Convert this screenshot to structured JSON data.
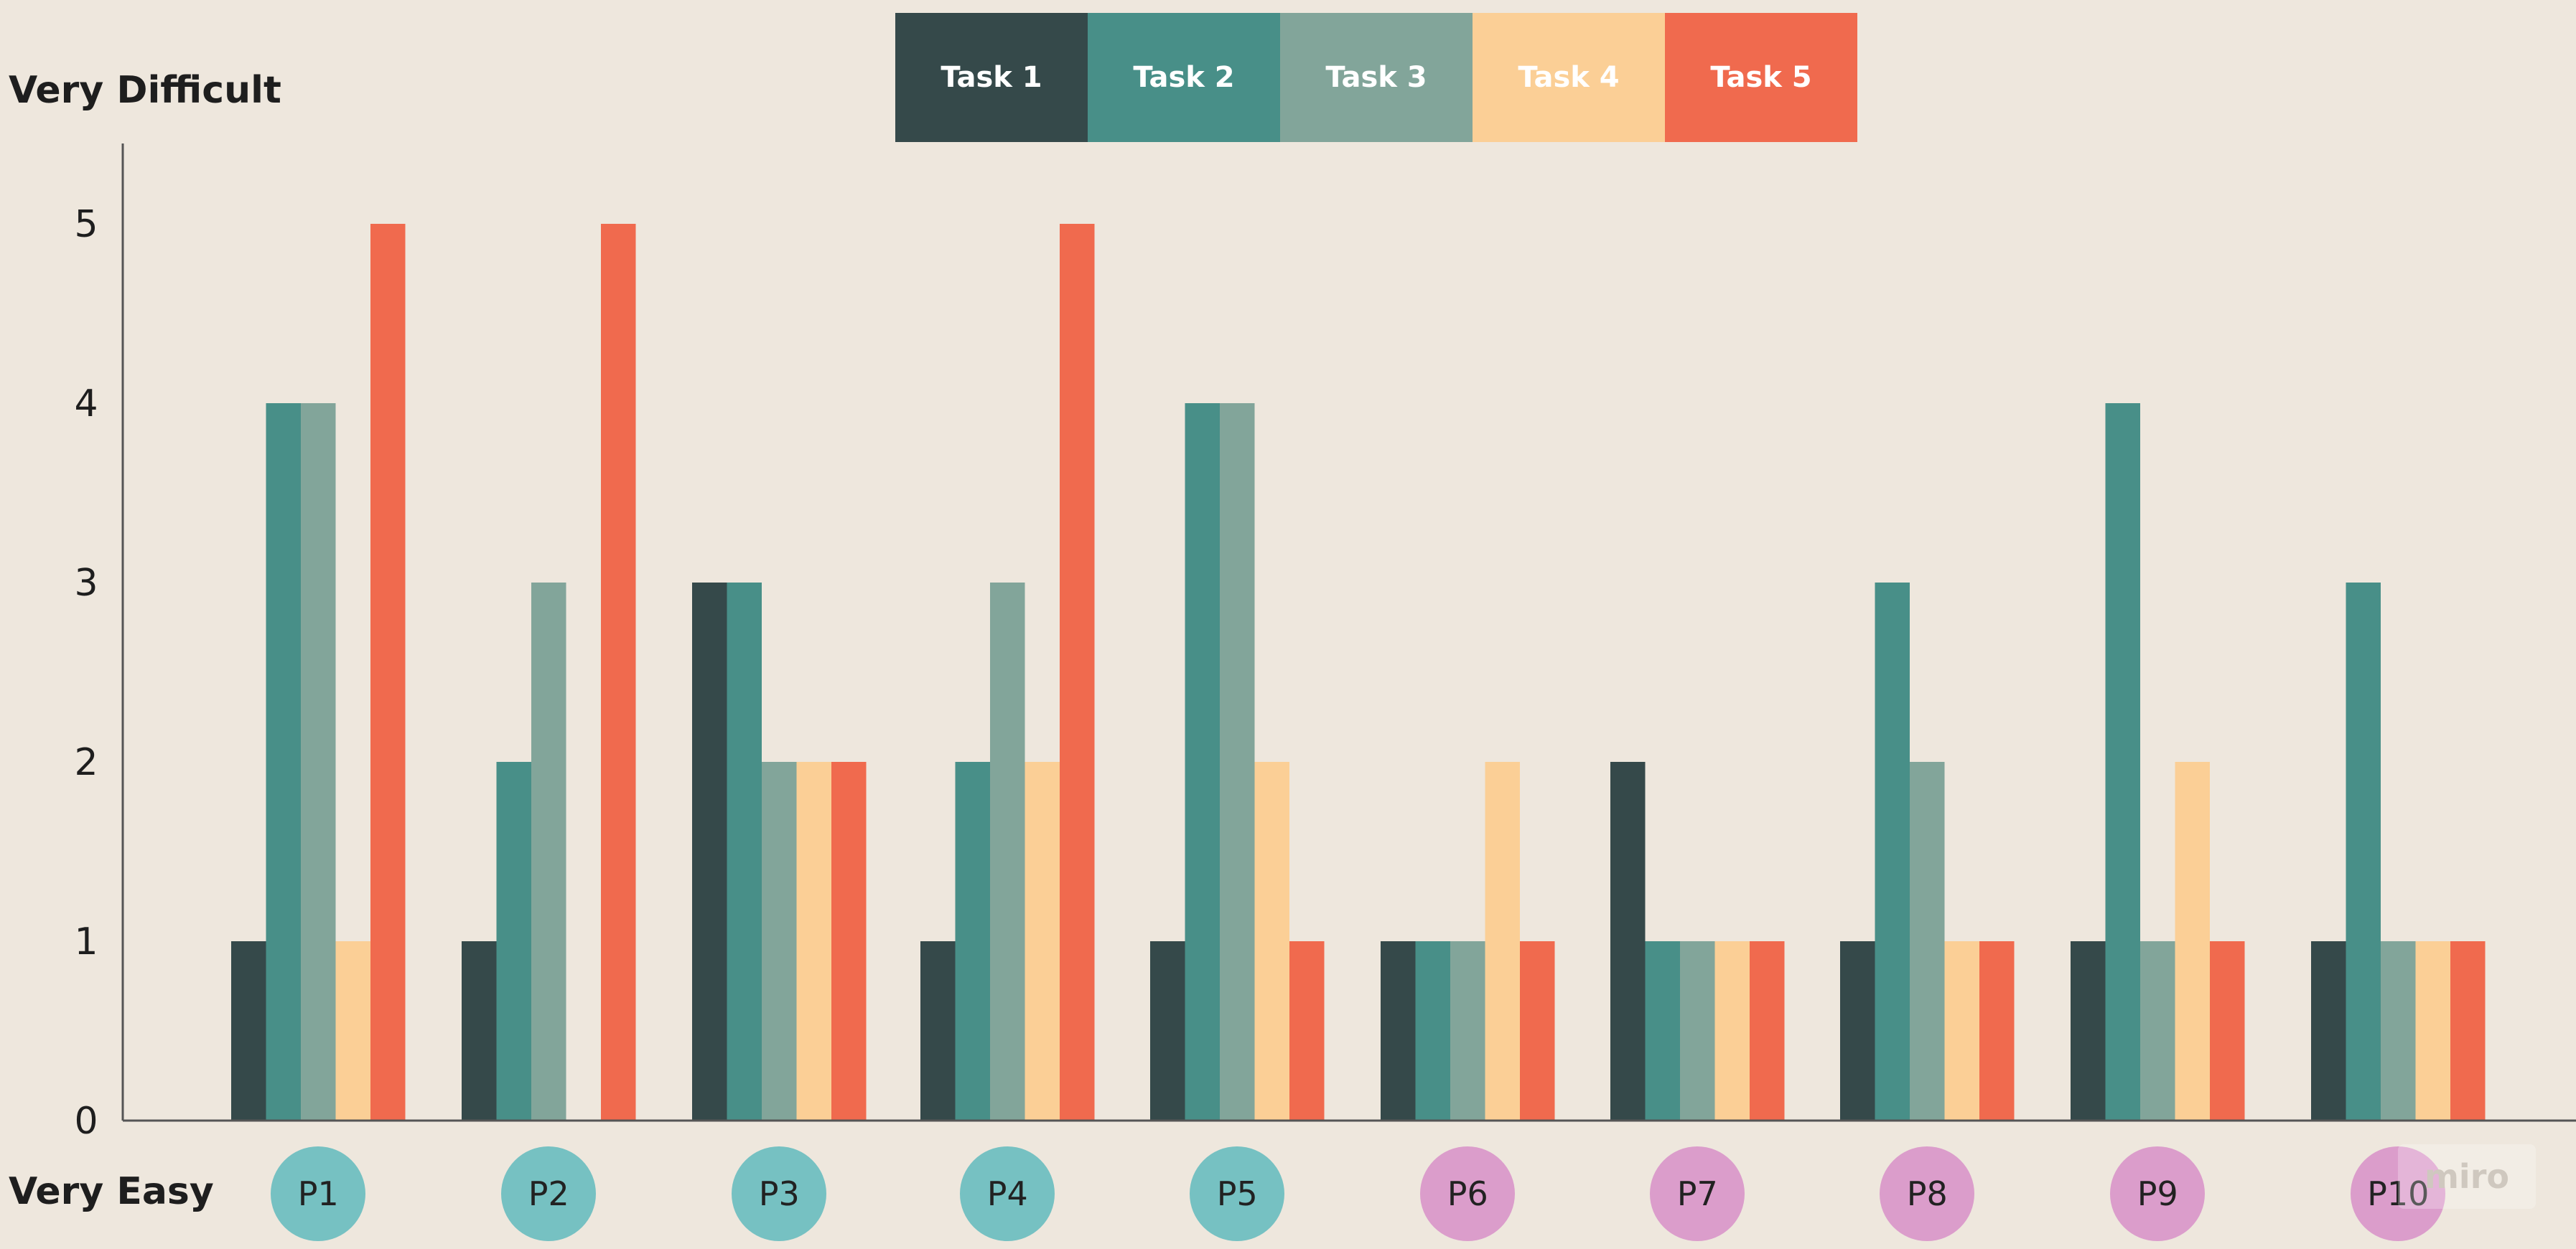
{
  "chart_data": {
    "type": "bar",
    "y_top_label": "Very Difficult",
    "y_bottom_label": "Very Easy",
    "ylim": [
      0,
      5
    ],
    "yticks": [
      "0",
      "1",
      "2",
      "3",
      "4",
      "5"
    ],
    "categories": [
      "P1",
      "P2",
      "P3",
      "P4",
      "P5",
      "P6",
      "P7",
      "P8",
      "P9",
      "P10"
    ],
    "category_colors": [
      "#76C1C2",
      "#76C1C2",
      "#76C1C2",
      "#76C1C2",
      "#76C1C2",
      "#DB9DCB",
      "#DB9DCB",
      "#DB9DCB",
      "#DB9DCB",
      "#DB9DCB"
    ],
    "series": [
      {
        "name": "Task 1",
        "color": "#35494A",
        "values": [
          1,
          1,
          3,
          1,
          1,
          1,
          2,
          1,
          1,
          1
        ]
      },
      {
        "name": "Task 2",
        "color": "#488F88",
        "values": [
          4,
          2,
          3,
          2,
          4,
          1,
          1,
          3,
          4,
          3
        ]
      },
      {
        "name": "Task 3",
        "color": "#82A59A",
        "values": [
          4,
          3,
          2,
          3,
          4,
          1,
          1,
          2,
          1,
          1
        ]
      },
      {
        "name": "Task 4",
        "color": "#FBCF96",
        "values": [
          1,
          0,
          2,
          2,
          2,
          2,
          1,
          1,
          2,
          1
        ]
      },
      {
        "name": "Task 5",
        "color": "#F06A4E",
        "values": [
          5,
          5,
          2,
          5,
          1,
          1,
          1,
          1,
          1,
          1
        ]
      }
    ],
    "legend_position": "top-center",
    "grid": false
  },
  "watermark": "miro"
}
